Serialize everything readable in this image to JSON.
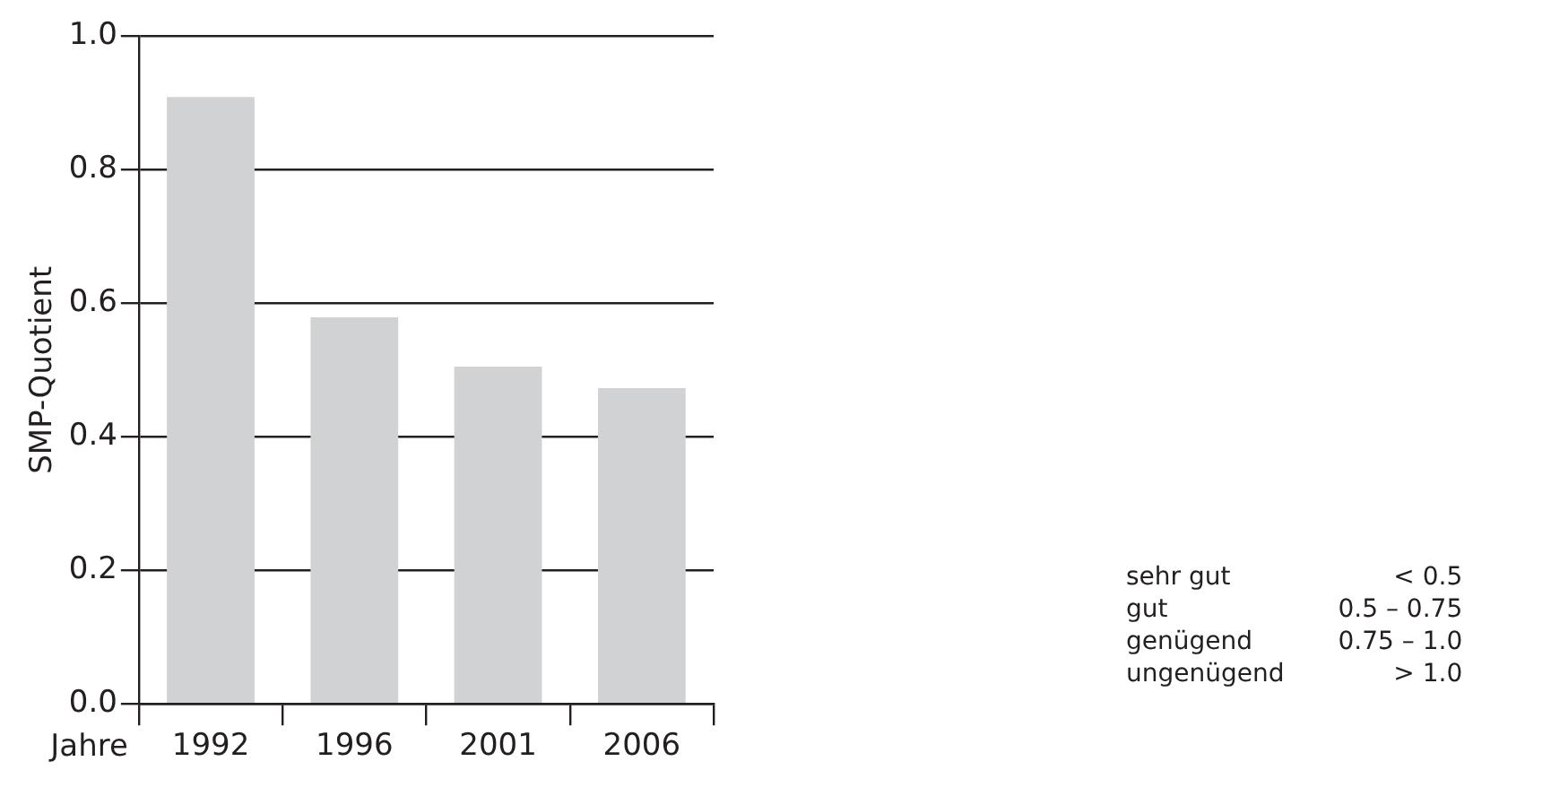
{
  "chart_data": {
    "type": "bar",
    "ylabel": "SMP-Quotient",
    "xlabel": "Jahre",
    "categories": [
      "1992",
      "1996",
      "2001",
      "2006"
    ],
    "values": [
      0.909,
      0.579,
      0.505,
      0.473
    ],
    "color": "#d1d2d4",
    "ylim": [
      0,
      1.0
    ],
    "yticks": [
      {
        "value": 0,
        "label": "0.0"
      },
      {
        "value": 0.2,
        "label": "0.2"
      },
      {
        "value": 0.4,
        "label": "0.4"
      },
      {
        "value": 0.6,
        "label": "0.6"
      },
      {
        "value": 0.8,
        "label": "0.8"
      },
      {
        "value": 1.0,
        "label": "1.0"
      }
    ],
    "grid": "y",
    "legend": false,
    "annotations": [
      "sehr gut",
      "< 0.5",
      "gut",
      "0.5 – 0.75",
      "genügend",
      "0.75 – 1.0",
      "ungenügend",
      "> 1.0"
    ]
  }
}
